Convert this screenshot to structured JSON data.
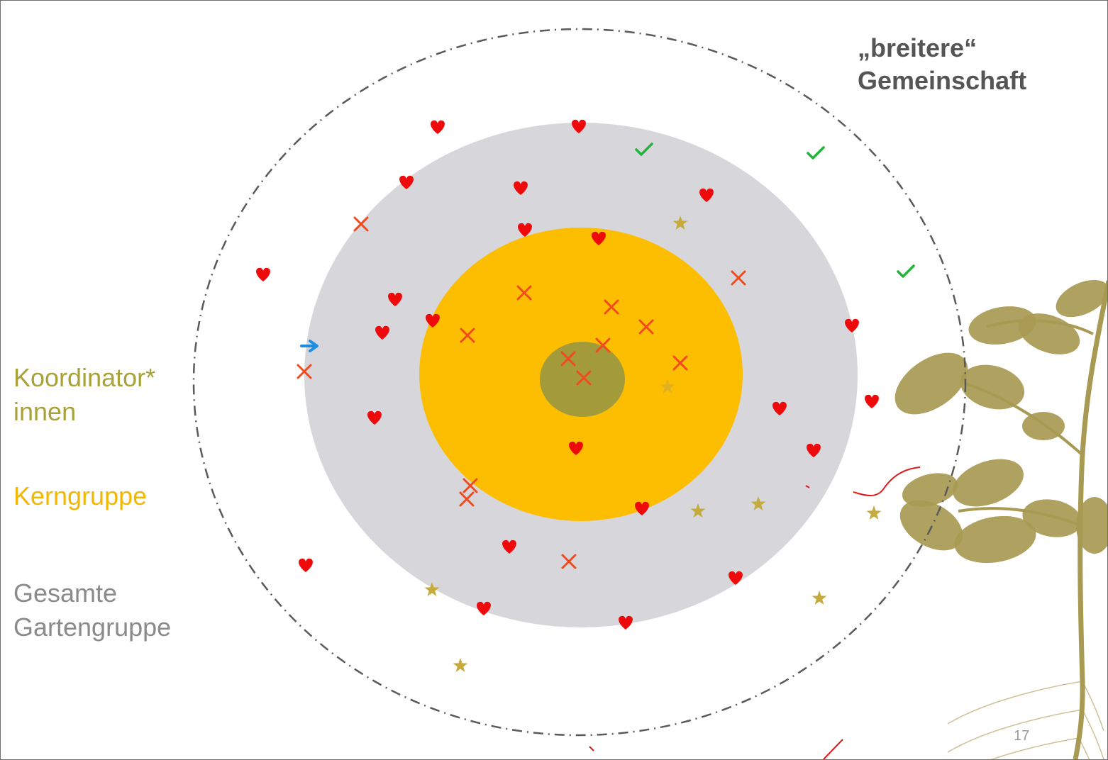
{
  "labels": {
    "koordinatorinnen": "Koordinator*\ninnen",
    "kerngruppe": "Kerngruppe",
    "gesamte": "Gesamte\nGartengruppe",
    "breitere": "„breitere“\nGemeinschaft"
  },
  "page_number": "17",
  "colors": {
    "outer_dashed": "#5a5a5a",
    "gesamte_circle": "#d7d6db",
    "kern_circle": "#fdbd00",
    "koord_circle": "#a39b3a",
    "heart": "#ee0a0a",
    "cross": "#f04a1e",
    "star": "#c6aa3c",
    "check": "#22b33a",
    "arrow": "#1e8fe0",
    "plant": "#a89a52"
  },
  "symbols": {
    "hearts": 27,
    "crosses": 16,
    "stars": 8,
    "checks": 3,
    "arrows": 1
  }
}
